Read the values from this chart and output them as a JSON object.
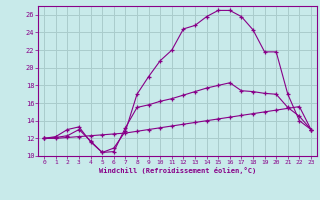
{
  "xlabel": "Windchill (Refroidissement éolien,°C)",
  "background_color": "#c8eaea",
  "line_color": "#880088",
  "grid_color": "#aacccc",
  "spine_color": "#880088",
  "xlim": [
    -0.5,
    23.5
  ],
  "ylim": [
    10,
    27
  ],
  "yticks": [
    10,
    12,
    14,
    16,
    18,
    20,
    22,
    24,
    26
  ],
  "xticks": [
    0,
    1,
    2,
    3,
    4,
    5,
    6,
    7,
    8,
    9,
    10,
    11,
    12,
    13,
    14,
    15,
    16,
    17,
    18,
    19,
    20,
    21,
    22,
    23
  ],
  "line1_x": [
    0,
    1,
    2,
    3,
    4,
    5,
    6,
    7,
    8,
    9,
    10,
    11,
    12,
    13,
    14,
    15,
    16,
    17,
    18,
    19,
    20,
    21,
    22,
    23
  ],
  "line1_y": [
    12.0,
    12.2,
    13.0,
    13.3,
    11.6,
    10.4,
    10.9,
    12.8,
    17.0,
    19.0,
    20.8,
    22.0,
    24.4,
    24.8,
    25.8,
    26.5,
    26.5,
    25.8,
    24.3,
    21.8,
    21.8,
    17.0,
    14.0,
    13.0
  ],
  "line2_x": [
    0,
    1,
    2,
    3,
    4,
    5,
    6,
    7,
    8,
    9,
    10,
    11,
    12,
    13,
    14,
    15,
    16,
    17,
    18,
    19,
    20,
    21,
    22,
    23
  ],
  "line2_y": [
    12.0,
    12.1,
    12.3,
    13.0,
    11.7,
    10.4,
    10.5,
    13.2,
    15.5,
    15.8,
    16.2,
    16.5,
    16.9,
    17.3,
    17.7,
    18.0,
    18.3,
    17.4,
    17.3,
    17.1,
    17.0,
    15.5,
    14.5,
    13.0
  ],
  "line3_x": [
    0,
    1,
    2,
    3,
    4,
    5,
    6,
    7,
    8,
    9,
    10,
    11,
    12,
    13,
    14,
    15,
    16,
    17,
    18,
    19,
    20,
    21,
    22,
    23
  ],
  "line3_y": [
    12.0,
    12.0,
    12.1,
    12.2,
    12.3,
    12.4,
    12.5,
    12.6,
    12.8,
    13.0,
    13.2,
    13.4,
    13.6,
    13.8,
    14.0,
    14.2,
    14.4,
    14.6,
    14.8,
    15.0,
    15.2,
    15.4,
    15.6,
    13.0
  ]
}
